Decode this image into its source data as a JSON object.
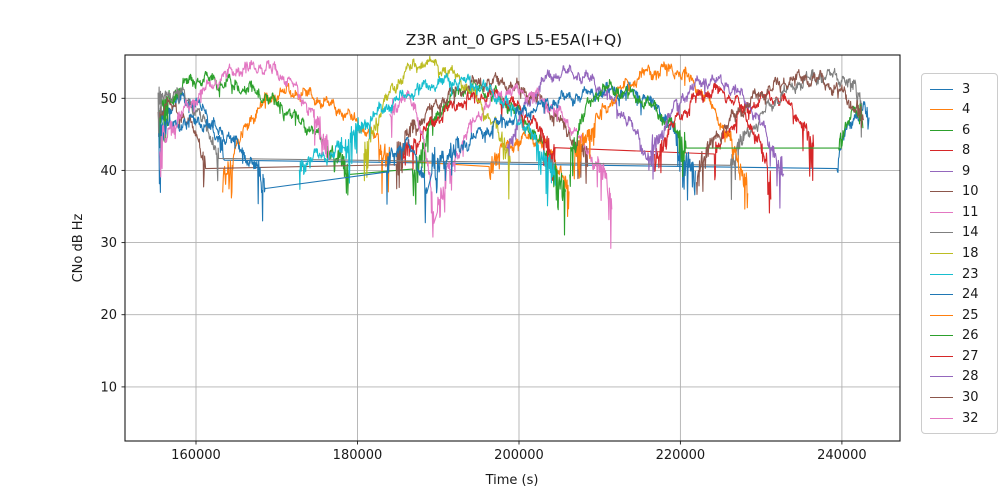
{
  "figure": {
    "title": "Z3R ant_0 GPS L5-E5A(I+Q)"
  },
  "chart_data": {
    "type": "line",
    "title": "Z3R ant_0 GPS L5-E5A(I+Q)",
    "xlabel": "Time (s)",
    "ylabel": "CNo dB Hz",
    "xlim": [
      151200,
      247200
    ],
    "ylim": [
      2.5,
      56
    ],
    "xticks": [
      160000,
      180000,
      200000,
      220000,
      240000
    ],
    "yticks": [
      10,
      20,
      30,
      40,
      50
    ],
    "grid": true,
    "grid_color": "#b0b0b0",
    "legend_position": "outside-right",
    "series": [
      {
        "name": "3",
        "color": "#1f77b4",
        "arcs": [
          {
            "t": [
              155400,
              158800,
              163500
            ],
            "v": [
              47.0,
              49.8,
              42.0
            ],
            "spike": 1.2
          },
          {
            "t": [
              239400,
              242900,
              243400
            ],
            "v": [
              41.3,
              48.5,
              47.5
            ],
            "spike": 0.6
          }
        ]
      },
      {
        "name": "4",
        "color": "#ff7f0e",
        "arcs": [
          {
            "t": [
              163300,
              171000,
              184000
            ],
            "v": [
              38.5,
              50.8,
              42.0
            ],
            "spike": 1.3
          },
          {
            "t": [
              196300,
              201500,
              206200
            ],
            "v": [
              40.8,
              44.5,
              37.2
            ],
            "spike": 1.5
          }
        ]
      },
      {
        "name": "6",
        "color": "#2ca02c",
        "arcs": [
          {
            "t": [
              155400,
              160500,
              179000
            ],
            "v": [
              47.5,
              52.6,
              40.0
            ],
            "spike": 1.4
          },
          {
            "t": [
              186800,
              194000,
              205800
            ],
            "v": [
              39.5,
              51.5,
              37.0
            ],
            "spike": 1.4
          }
        ]
      },
      {
        "name": "8",
        "color": "#d62728",
        "arcs": [
          {
            "t": [
              185200,
              196000,
              204500
            ],
            "v": [
              41.0,
              50.3,
              42.3
            ],
            "spike": 1.3
          },
          {
            "t": [
              224200,
              231500,
              236500
            ],
            "v": [
              42.3,
              50.2,
              43.0
            ],
            "spike": 1.3
          }
        ]
      },
      {
        "name": "9",
        "color": "#9467bd",
        "arcs": [
          {
            "t": [
              198400,
              205600,
              216800
            ],
            "v": [
              42.5,
              53.6,
              40.0
            ],
            "spike": 1.3
          }
        ]
      },
      {
        "name": "10",
        "color": "#8c564b",
        "arcs": [
          {
            "t": [
              155300,
              156400,
              161200
            ],
            "v": [
              48.6,
              48.9,
              41.8
            ],
            "spike": 1.1
          },
          {
            "t": [
              184800,
              196500,
              208500
            ],
            "v": [
              42.5,
              52.3,
              41.5
            ],
            "spike": 1.2
          }
        ]
      },
      {
        "name": "11",
        "color": "#e377c2",
        "arcs": [
          {
            "t": [
              184000,
              186200,
              189500
            ],
            "v": [
              48.5,
              50.0,
              33.5
            ],
            "spike": 1.2
          },
          {
            "t": [
              189900,
              199300,
              211500
            ],
            "v": [
              35.5,
              51.0,
              36.8
            ],
            "spike": 1.5
          }
        ]
      },
      {
        "name": "14",
        "color": "#7f7f7f",
        "arcs": [
          {
            "t": [
              155300,
              157000,
              162800
            ],
            "v": [
              50.3,
              50.9,
              41.8
            ],
            "spike": 1.1
          },
          {
            "t": [
              226200,
              238500,
              242500
            ],
            "v": [
              41.5,
              53.2,
              50.3
            ],
            "spike": 1.0
          }
        ]
      },
      {
        "name": "18",
        "color": "#bcbd22",
        "arcs": [
          {
            "t": [
              180800,
              188300,
              199000
            ],
            "v": [
              42.0,
              54.8,
              41.5
            ],
            "spike": 1.2
          }
        ]
      },
      {
        "name": "23",
        "color": "#17becf",
        "arcs": [
          {
            "t": [
              172800,
              175500,
              178200
            ],
            "v": [
              40.3,
              42.0,
              43.5
            ],
            "spike": 0.8
          },
          {
            "t": [
              178400,
              192500,
              204500
            ],
            "v": [
              43.6,
              52.4,
              39.0
            ],
            "spike": 1.3
          }
        ]
      },
      {
        "name": "24",
        "color": "#1f77b4",
        "arcs": [
          {
            "t": [
              155400,
              159500,
              168600
            ],
            "v": [
              45.5,
              46.8,
              38.0
            ],
            "spike": 1.6
          },
          {
            "t": [
              183600,
              185800,
              188600
            ],
            "v": [
              41.0,
              43.5,
              37.0
            ],
            "spike": 1.9
          },
          {
            "t": [
              189200,
              213400,
              221900
            ],
            "v": [
              40.5,
              51.0,
              38.5
            ],
            "spike": 1.3
          }
        ]
      },
      {
        "name": "25",
        "color": "#ff7f0e",
        "arcs": [
          {
            "t": [
              206800,
              218200,
              228400
            ],
            "v": [
              41.5,
              54.0,
              37.5
            ],
            "spike": 1.4
          }
        ]
      },
      {
        "name": "26",
        "color": "#2ca02c",
        "arcs": [
          {
            "t": [
              206300,
              210800,
              220700
            ],
            "v": [
              41.5,
              51.3,
              43.7
            ],
            "spike": 1.4
          },
          {
            "t": [
              239600,
              242100,
              242600
            ],
            "v": [
              43.8,
              48.0,
              47.0
            ],
            "spike": 0.7
          }
        ]
      },
      {
        "name": "27",
        "color": "#d62728",
        "arcs": [
          {
            "t": [
              216800,
              224500,
              231200
            ],
            "v": [
              41.5,
              51.0,
              39.0
            ],
            "spike": 1.3
          }
        ]
      },
      {
        "name": "28",
        "color": "#9467bd",
        "arcs": [
          {
            "t": [
              216300,
              223800,
              232800
            ],
            "v": [
              42.0,
              52.5,
              39.5
            ],
            "spike": 1.3
          }
        ]
      },
      {
        "name": "30",
        "color": "#8c564b",
        "arcs": [
          {
            "t": [
              222000,
              235800,
              242700
            ],
            "v": [
              40.5,
              52.8,
              47.2
            ],
            "spike": 1.0
          }
        ]
      },
      {
        "name": "32",
        "color": "#e377c2",
        "arcs": [
          {
            "t": [
              155500,
              167800,
              176500
            ],
            "v": [
              43.5,
              54.4,
              43.0
            ],
            "spike": 1.2
          }
        ]
      }
    ]
  }
}
